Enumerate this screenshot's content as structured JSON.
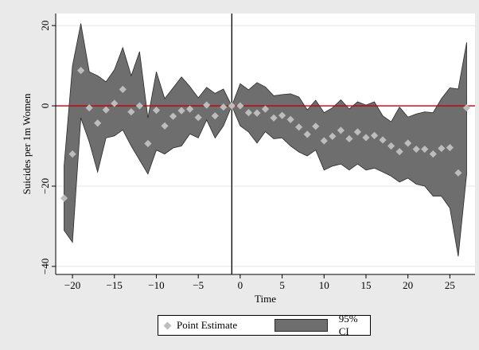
{
  "chart_data": {
    "type": "scatter",
    "xlabel": "Time",
    "ylabel": "Suicides per 1m Women",
    "xticks": [
      -20,
      -15,
      -10,
      -5,
      0,
      5,
      10,
      15,
      20,
      25
    ],
    "yticks": [
      20,
      0,
      -20,
      -40
    ],
    "xlim": [
      -22,
      28
    ],
    "ylim": [
      -42,
      23
    ],
    "grid": true,
    "reference_lines": {
      "horizontal_y": 0,
      "vertical_x": -1
    },
    "series": [
      {
        "name": "Point Estimate",
        "x": [
          -21,
          -20,
          -19,
          -18,
          -17,
          -16,
          -15,
          -14,
          -13,
          -12,
          -11,
          -10,
          -9,
          -8,
          -7,
          -6,
          -5,
          -4,
          -3,
          -2,
          -1,
          0,
          1,
          2,
          3,
          4,
          5,
          6,
          7,
          8,
          9,
          10,
          11,
          12,
          13,
          14,
          15,
          16,
          17,
          18,
          19,
          20,
          21,
          22,
          23,
          24,
          25,
          26,
          27
        ],
        "y": [
          -23,
          -12,
          8.8,
          -0.5,
          -4.3,
          -1,
          0.6,
          4.1,
          -1.5,
          0,
          -9.4,
          -1.1,
          -5,
          -2.6,
          -1.2,
          -0.8,
          -2.9,
          0.2,
          -2.5,
          -0.3,
          0,
          0,
          -1.7,
          -1.8,
          -0.8,
          -3,
          -2.4,
          -3.4,
          -5.3,
          -7.1,
          -5.1,
          -8.7,
          -7.6,
          -6.1,
          -8.2,
          -6.5,
          -7.9,
          -7.4,
          -8.5,
          -10,
          -11.4,
          -9.3,
          -10.8,
          -10.8,
          -12,
          -10.6,
          -10.4,
          -16.7,
          -0.5
        ]
      },
      {
        "name": "95% CI",
        "x": [
          -21,
          -20,
          -19,
          -18,
          -17,
          -16,
          -15,
          -14,
          -13,
          -12,
          -11,
          -10,
          -9,
          -8,
          -7,
          -6,
          -5,
          -4,
          -3,
          -2,
          -1,
          0,
          1,
          2,
          3,
          4,
          5,
          6,
          7,
          8,
          9,
          10,
          11,
          12,
          13,
          14,
          15,
          16,
          17,
          18,
          19,
          20,
          21,
          22,
          23,
          24,
          25,
          26,
          27
        ],
        "upper": [
          -15,
          10,
          20.5,
          8.5,
          7.5,
          6,
          9,
          14.5,
          7.5,
          13.5,
          -3,
          8.5,
          1.8,
          4.5,
          7.2,
          4.8,
          2,
          4.6,
          3.1,
          4.2,
          0,
          5.5,
          4,
          5.8,
          4.7,
          2.5,
          2.8,
          3,
          2.2,
          -1,
          1.4,
          -1.7,
          -0.5,
          1.5,
          -0.8,
          1,
          0.2,
          1,
          -2.5,
          -4,
          -0.3,
          -2.8,
          -2,
          -1.5,
          -1.7,
          1.8,
          4.5,
          4.2,
          15.8
        ],
        "lower": [
          -31,
          -34,
          -3,
          -9,
          -16.5,
          -8,
          -7.5,
          -6,
          -10,
          -13.5,
          -17,
          -11,
          -12,
          -10.5,
          -10,
          -7,
          -8,
          -3.5,
          -8,
          -5,
          0,
          -5,
          -6.5,
          -9.3,
          -6.4,
          -8.2,
          -8,
          -10,
          -11.5,
          -12.5,
          -11,
          -16,
          -15,
          -14.5,
          -16,
          -14.5,
          -16,
          -15.5,
          -16.5,
          -17.5,
          -19,
          -18,
          -19.5,
          -20,
          -22.5,
          -22.5,
          -25.5,
          -37.5,
          -17
        ]
      }
    ],
    "legend": {
      "position": "bottom",
      "entries": [
        {
          "label": "Point Estimate",
          "marker": "diamond"
        },
        {
          "label": "95% CI",
          "marker": "area"
        }
      ]
    },
    "colors": {
      "background": "#eaeaea",
      "plot_bg": "#ffffff",
      "ci_fill": "#6e6e6e",
      "ci_stroke": "#2a2a2a",
      "point": "#bdbdbd",
      "zero_line": "#c0000a",
      "vline": "#000000",
      "grid": "#e4e4e4"
    }
  }
}
